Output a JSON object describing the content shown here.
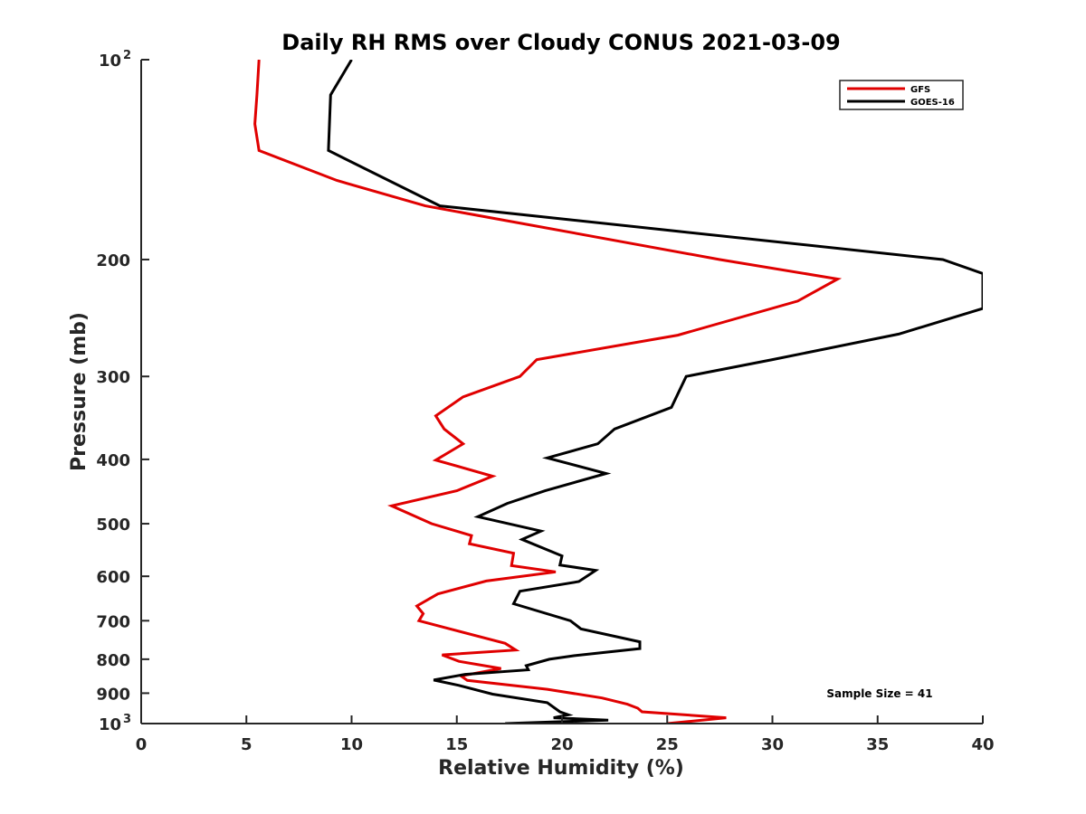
{
  "chart_data": {
    "type": "line",
    "title": "Daily RH RMS over Cloudy CONUS 2021-03-09",
    "xlabel": "Relative Humidity (%)",
    "ylabel": "Pressure (mb)",
    "xlim": [
      0,
      40
    ],
    "ylim": [
      100,
      1000
    ],
    "yscale": "log",
    "yreversed": true,
    "x_ticks": [
      "0",
      "5",
      "10",
      "15",
      "20",
      "25",
      "30",
      "35",
      "40"
    ],
    "y_ticks": [
      {
        "value": 100,
        "label": "10",
        "sup": "2"
      },
      {
        "value": 200,
        "label": "200",
        "sup": ""
      },
      {
        "value": 300,
        "label": "300",
        "sup": ""
      },
      {
        "value": 400,
        "label": "400",
        "sup": ""
      },
      {
        "value": 500,
        "label": "500",
        "sup": ""
      },
      {
        "value": 600,
        "label": "600",
        "sup": ""
      },
      {
        "value": 700,
        "label": "700",
        "sup": ""
      },
      {
        "value": 800,
        "label": "800",
        "sup": ""
      },
      {
        "value": 900,
        "label": "900",
        "sup": ""
      },
      {
        "value": 1000,
        "label": "10",
        "sup": "3"
      }
    ],
    "legend_position": "top-right",
    "annotation": "Sample Size = 41",
    "series": [
      {
        "name": "GFS",
        "color": "#e00000",
        "points": [
          [
            5.6,
            100
          ],
          [
            5.5,
            113
          ],
          [
            5.4,
            125
          ],
          [
            5.6,
            137
          ],
          [
            9.3,
            152
          ],
          [
            13.5,
            166
          ],
          [
            27.5,
            200
          ],
          [
            33.1,
            214
          ],
          [
            31.2,
            231
          ],
          [
            25.5,
            260
          ],
          [
            18.8,
            283
          ],
          [
            18.0,
            300
          ],
          [
            15.3,
            322
          ],
          [
            14.0,
            344
          ],
          [
            14.4,
            360
          ],
          [
            15.3,
            379
          ],
          [
            14.0,
            401
          ],
          [
            16.7,
            424
          ],
          [
            15.0,
            446
          ],
          [
            11.9,
            470
          ],
          [
            13.8,
            500
          ],
          [
            15.7,
            521
          ],
          [
            15.6,
            536
          ],
          [
            17.7,
            554
          ],
          [
            17.6,
            578
          ],
          [
            19.7,
            591
          ],
          [
            16.4,
            610
          ],
          [
            14.1,
            638
          ],
          [
            13.1,
            665
          ],
          [
            13.4,
            683
          ],
          [
            13.2,
            700
          ],
          [
            14.3,
            715
          ],
          [
            17.3,
            757
          ],
          [
            17.8,
            775
          ],
          [
            14.3,
            788
          ],
          [
            15.1,
            806
          ],
          [
            17.1,
            826
          ],
          [
            15.2,
            848
          ],
          [
            15.5,
            861
          ],
          [
            19.3,
            888
          ],
          [
            21.9,
            915
          ],
          [
            23.1,
            935
          ],
          [
            23.6,
            948
          ],
          [
            23.8,
            960
          ],
          [
            27.8,
            980
          ],
          [
            25.0,
            1000
          ]
        ]
      },
      {
        "name": "GOES-16",
        "color": "#000000",
        "points": [
          [
            10.0,
            100
          ],
          [
            9.0,
            113
          ],
          [
            8.9,
            137
          ],
          [
            14.2,
            166
          ],
          [
            38.1,
            200
          ],
          [
            40.0,
            210
          ],
          [
            40.0,
            237
          ],
          [
            36.0,
            259
          ],
          [
            30.0,
            283
          ],
          [
            25.9,
            300
          ],
          [
            25.2,
            334
          ],
          [
            22.5,
            360
          ],
          [
            21.7,
            379
          ],
          [
            19.3,
            398
          ],
          [
            22.1,
            420
          ],
          [
            19.2,
            446
          ],
          [
            17.4,
            466
          ],
          [
            16.0,
            488
          ],
          [
            19.0,
            513
          ],
          [
            18.1,
            528
          ],
          [
            20.0,
            559
          ],
          [
            19.9,
            577
          ],
          [
            21.6,
            588
          ],
          [
            20.8,
            611
          ],
          [
            18.0,
            632
          ],
          [
            17.7,
            660
          ],
          [
            20.4,
            700
          ],
          [
            20.9,
            720
          ],
          [
            23.7,
            753
          ],
          [
            23.7,
            771
          ],
          [
            20.6,
            790
          ],
          [
            19.4,
            800
          ],
          [
            18.3,
            818
          ],
          [
            18.4,
            830
          ],
          [
            15.4,
            843
          ],
          [
            13.9,
            860
          ],
          [
            15.1,
            876
          ],
          [
            16.7,
            903
          ],
          [
            19.3,
            930
          ],
          [
            19.9,
            960
          ],
          [
            20.3,
            970
          ],
          [
            19.6,
            980
          ],
          [
            22.2,
            988
          ],
          [
            17.3,
            1000
          ]
        ]
      }
    ]
  }
}
